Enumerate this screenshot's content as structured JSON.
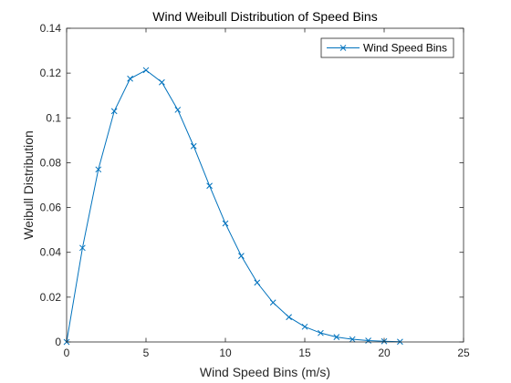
{
  "chart_data": {
    "type": "line",
    "title": "Wind Weibull Distribution of Speed Bins",
    "xlabel": "Wind Speed Bins (m/s)",
    "ylabel": "Weibull Distribution",
    "xlim": [
      0,
      25
    ],
    "ylim": [
      0,
      0.14
    ],
    "xticks": [
      0,
      5,
      10,
      15,
      20,
      25
    ],
    "yticks": [
      0,
      0.02,
      0.04,
      0.06,
      0.08,
      0.1,
      0.12,
      0.14
    ],
    "xtick_labels": [
      "0",
      "5",
      "10",
      "15",
      "20",
      "25"
    ],
    "ytick_labels": [
      "0",
      "0.02",
      "0.04",
      "0.06",
      "0.08",
      "0.1",
      "0.12",
      "0.14"
    ],
    "grid": false,
    "legend_position": "top-right",
    "series": [
      {
        "name": "Wind Speed Bins",
        "color": "#0072BD",
        "marker": "x",
        "x": [
          0,
          1,
          2,
          3,
          4,
          5,
          6,
          7,
          8,
          9,
          10,
          11,
          12,
          13,
          14,
          15,
          16,
          17,
          18,
          19,
          20,
          21
        ],
        "y": [
          0,
          0.042,
          0.077,
          0.103,
          0.1175,
          0.1213,
          0.1159,
          0.1036,
          0.0874,
          0.0697,
          0.0529,
          0.0384,
          0.0265,
          0.0176,
          0.0111,
          0.0068,
          0.004,
          0.0022,
          0.0012,
          0.0006,
          0.0003,
          0.0001
        ]
      }
    ]
  }
}
